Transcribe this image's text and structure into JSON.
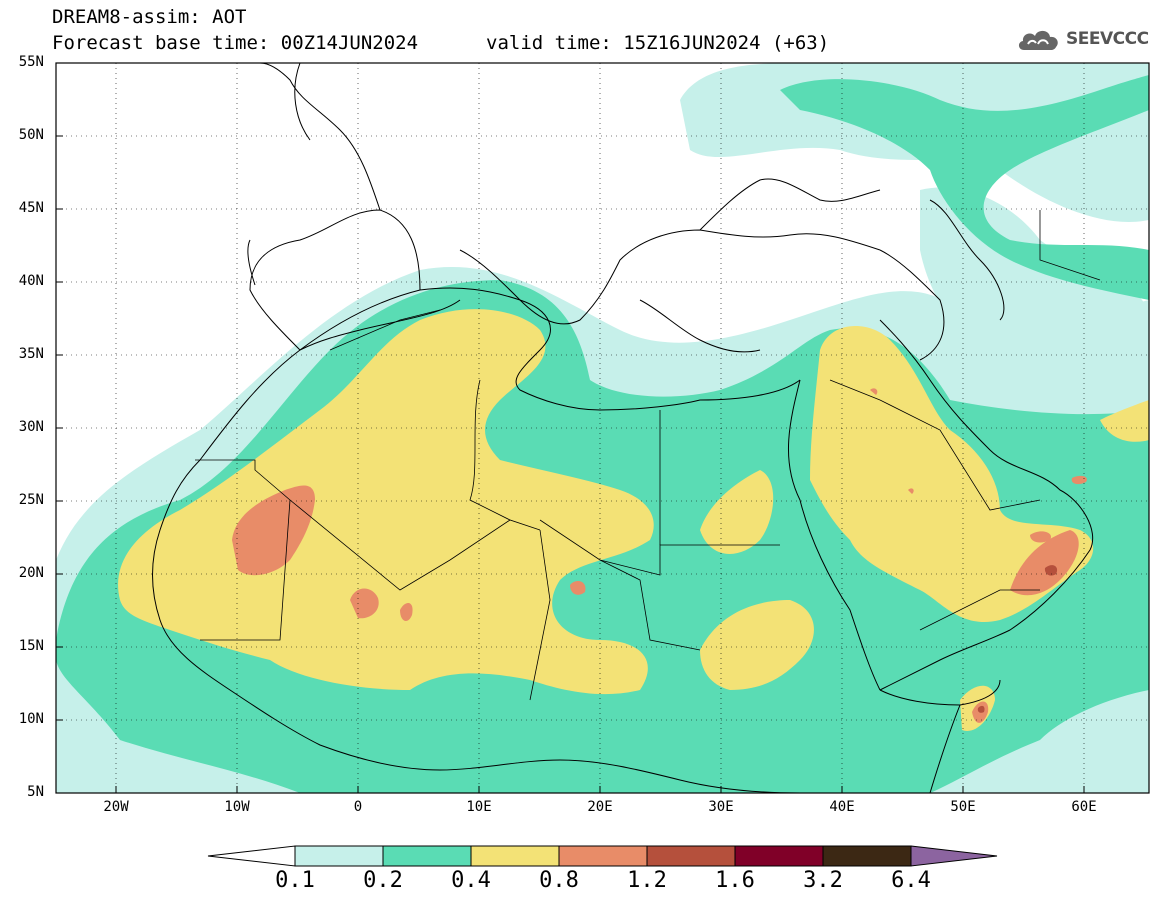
{
  "header": {
    "title": "DREAM8-assim: AOT",
    "base_time": "Forecast base time: 00Z14JUN2024",
    "valid_time": "valid time: 15Z16JUN2024 (+63)"
  },
  "logo": {
    "text": "SEEVCCC",
    "icon": "cloud-icon"
  },
  "map": {
    "lat_labels": [
      "55N",
      "50N",
      "45N",
      "40N",
      "35N",
      "30N",
      "25N",
      "20N",
      "15N",
      "10N",
      "5N"
    ],
    "lon_labels": [
      "20W",
      "10W",
      "0",
      "10E",
      "20E",
      "30E",
      "40E",
      "50E",
      "60E"
    ]
  },
  "colorbar": {
    "labels": [
      "0.1",
      "0.2",
      "0.4",
      "0.8",
      "1.2",
      "1.6",
      "3.2",
      "6.4"
    ],
    "colors": [
      "#c6f0ea",
      "#5adcb4",
      "#f3e276",
      "#e88c68",
      "#b5503c",
      "#800028",
      "#3c2814",
      "#8c64a0"
    ]
  }
}
